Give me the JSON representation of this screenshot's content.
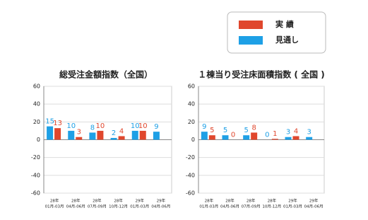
{
  "chart_data": [
    {
      "type": "bar",
      "title": "総受注金額指数（全国）",
      "categories": [
        [
          "28年",
          "01月-03月"
        ],
        [
          "28年",
          "04月-06月"
        ],
        [
          "28年",
          "07月-09月"
        ],
        [
          "28年",
          "10月-12月"
        ],
        [
          "29年",
          "01月-03月"
        ],
        [
          "29年",
          "04月-06月"
        ]
      ],
      "series": [
        {
          "name": "実 績",
          "color": "#e0472d",
          "values": [
            13,
            3,
            10,
            4,
            10,
            null
          ]
        },
        {
          "name": "見通し",
          "color": "#1ea0e6",
          "values": [
            15,
            10,
            8,
            2,
            10,
            9
          ]
        }
      ],
      "ylim": [
        -60,
        60
      ],
      "yticks": [
        -60,
        -40,
        -20,
        0,
        20,
        40,
        60
      ],
      "grid": true
    },
    {
      "type": "bar",
      "title": "１棟当り受注床面積指数 ( 全国 )",
      "categories": [
        [
          "28年",
          "01月-03月"
        ],
        [
          "28年",
          "04月-06月"
        ],
        [
          "28年",
          "07月-09月"
        ],
        [
          "28年",
          "10月-12月"
        ],
        [
          "29年",
          "01月-03月"
        ],
        [
          "29年",
          "04月-06月"
        ]
      ],
      "series": [
        {
          "color": "#e0472d",
          "values": [
            5,
            0,
            8,
            1,
            4,
            null
          ]
        },
        {
          "color": "#1ea0e6",
          "values": [
            9,
            5,
            5,
            0,
            3,
            3
          ]
        }
      ],
      "ylim": [
        -60,
        60
      ],
      "yticks": [
        -60,
        -40,
        -20,
        0,
        20,
        40,
        60
      ],
      "grid": true
    }
  ]
}
